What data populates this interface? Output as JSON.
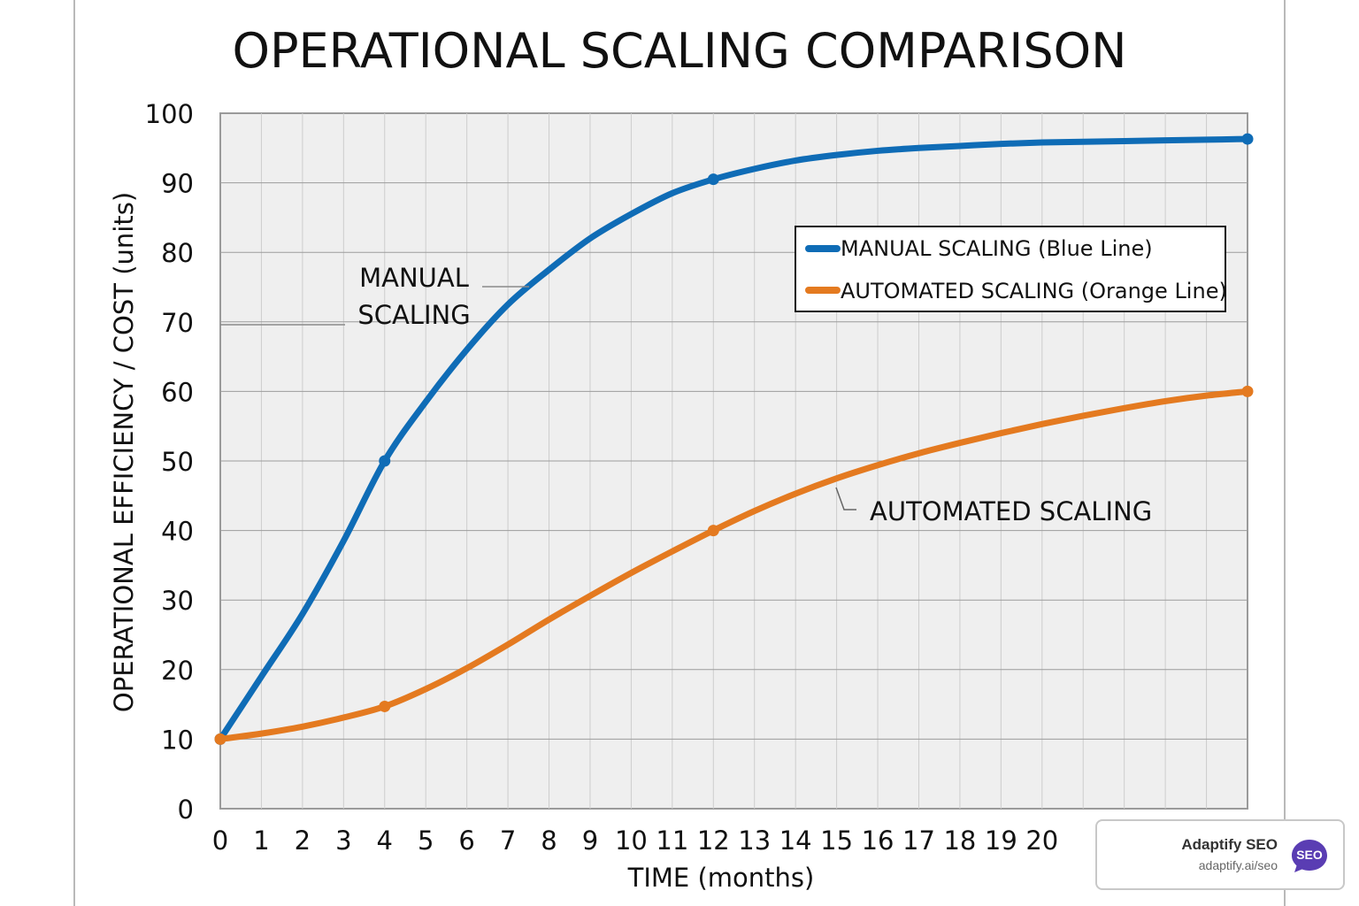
{
  "chart_data": {
    "type": "line",
    "title": "OPERATIONAL SCALING COMPARISON",
    "xlabel": "TIME (months)",
    "ylabel": "OPERATIONAL EFFICIENCY / COST (units)",
    "xlim": [
      0,
      25
    ],
    "ylim": [
      0,
      100
    ],
    "x_ticks": [
      0,
      1,
      2,
      3,
      4,
      5,
      6,
      7,
      8,
      9,
      10,
      11,
      12,
      13,
      14,
      15,
      16,
      17,
      18,
      19,
      20
    ],
    "y_ticks": [
      0,
      10,
      20,
      30,
      40,
      50,
      60,
      70,
      80,
      90,
      100
    ],
    "grid": true,
    "legend_position": "top-right",
    "series": [
      {
        "name": "MANUAL SCALING (Blue Line)",
        "color": "#0f6cb6",
        "x": [
          0,
          1,
          2,
          3,
          4,
          5,
          6,
          7,
          8,
          9,
          10,
          11,
          12,
          13,
          14,
          15,
          16,
          17,
          18,
          19,
          20,
          21,
          22,
          23,
          24,
          25
        ],
        "y": [
          10,
          19,
          28,
          38.5,
          50,
          58.5,
          66,
          72.5,
          77.5,
          82,
          85.5,
          88.5,
          90.5,
          92,
          93.2,
          94,
          94.6,
          95,
          95.3,
          95.6,
          95.8,
          95.9,
          96,
          96.1,
          96.2,
          96.3
        ],
        "markers_x": [
          0,
          4,
          12,
          25
        ]
      },
      {
        "name": "AUTOMATED SCALING (Orange Line)",
        "color": "#e47a20",
        "x": [
          0,
          1,
          2,
          3,
          4,
          5,
          6,
          7,
          8,
          9,
          10,
          11,
          12,
          13,
          14,
          15,
          16,
          17,
          18,
          19,
          20,
          21,
          22,
          23,
          24,
          25
        ],
        "y": [
          10,
          10.8,
          11.8,
          13.1,
          14.7,
          17.2,
          20.2,
          23.6,
          27.2,
          30.6,
          33.9,
          37,
          40,
          42.8,
          45.3,
          47.5,
          49.4,
          51.1,
          52.6,
          54,
          55.3,
          56.5,
          57.6,
          58.6,
          59.4,
          60
        ],
        "markers_x": [
          0,
          4,
          12,
          25
        ]
      }
    ],
    "annotations": [
      {
        "lines": [
          "MANUAL",
          "SCALING"
        ],
        "series": 0
      },
      {
        "lines": [
          "AUTOMATED SCALING"
        ],
        "series": 1
      }
    ]
  },
  "branding": {
    "name": "Adaptify SEO",
    "url": "adaptify.ai/seo",
    "logo_text": "SEO",
    "logo_color": "#5a3db3"
  }
}
